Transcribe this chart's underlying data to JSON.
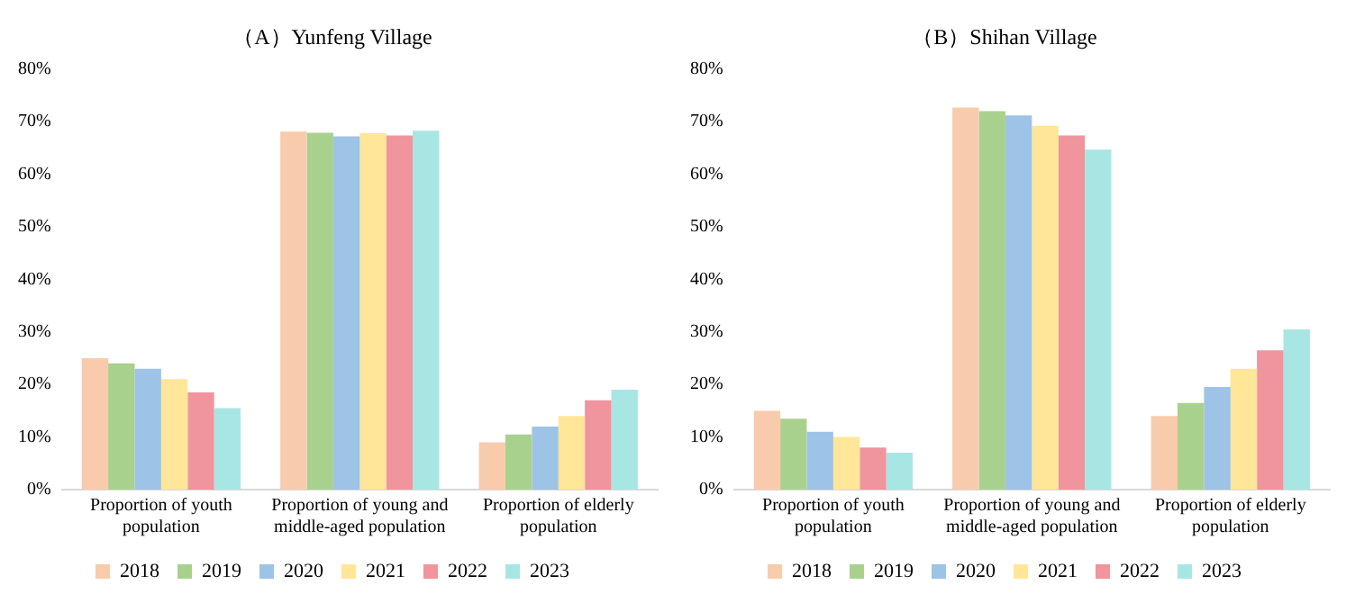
{
  "chart_data": [
    {
      "type": "bar",
      "title": "（A）Yunfeng Village",
      "categories": [
        "Proportion of youth population",
        "Proportion of young and middle-aged population",
        "Proportion of elderly population"
      ],
      "ylim": [
        0,
        80
      ],
      "yticks": [
        {
          "value": 0,
          "label": "0%"
        },
        {
          "value": 10,
          "label": "10%"
        },
        {
          "value": 20,
          "label": "20%"
        },
        {
          "value": 30,
          "label": "30%"
        },
        {
          "value": 40,
          "label": "40%"
        },
        {
          "value": 50,
          "label": "50%"
        },
        {
          "value": 60,
          "label": "60%"
        },
        {
          "value": 70,
          "label": "70%"
        },
        {
          "value": 80,
          "label": "80%"
        }
      ],
      "grid": false,
      "legend": "bottom",
      "series": [
        {
          "name": "2018",
          "color": "#f8cbad",
          "values": [
            25,
            68.1,
            9
          ]
        },
        {
          "name": "2019",
          "color": "#a9d18e",
          "values": [
            24,
            67.9,
            10.5
          ]
        },
        {
          "name": "2020",
          "color": "#9dc3e6",
          "values": [
            23,
            67.2,
            12
          ]
        },
        {
          "name": "2021",
          "color": "#ffe699",
          "values": [
            21,
            67.8,
            14
          ]
        },
        {
          "name": "2022",
          "color": "#f0949e",
          "values": [
            18.5,
            67.4,
            17
          ]
        },
        {
          "name": "2023",
          "color": "#a8e6e4",
          "values": [
            15.5,
            68.3,
            19
          ]
        }
      ]
    },
    {
      "type": "bar",
      "title": "（B）Shihan Village",
      "categories": [
        "Proportion of youth population",
        "Proportion of young and middle-aged population",
        "Proportion of elderly population"
      ],
      "ylim": [
        0,
        80
      ],
      "yticks": [
        {
          "value": 0,
          "label": "0%"
        },
        {
          "value": 10,
          "label": "10%"
        },
        {
          "value": 20,
          "label": "20%"
        },
        {
          "value": 30,
          "label": "30%"
        },
        {
          "value": 40,
          "label": "40%"
        },
        {
          "value": 50,
          "label": "50%"
        },
        {
          "value": 60,
          "label": "60%"
        },
        {
          "value": 70,
          "label": "70%"
        },
        {
          "value": 80,
          "label": "80%"
        }
      ],
      "grid": false,
      "legend": "bottom",
      "series": [
        {
          "name": "2018",
          "color": "#f8cbad",
          "values": [
            15,
            72.7,
            14
          ]
        },
        {
          "name": "2019",
          "color": "#a9d18e",
          "values": [
            13.5,
            72,
            16.5
          ]
        },
        {
          "name": "2020",
          "color": "#9dc3e6",
          "values": [
            11,
            71.2,
            19.5
          ]
        },
        {
          "name": "2021",
          "color": "#ffe699",
          "values": [
            10,
            69.2,
            23
          ]
        },
        {
          "name": "2022",
          "color": "#f0949e",
          "values": [
            8,
            67.4,
            26.5
          ]
        },
        {
          "name": "2023",
          "color": "#a8e6e4",
          "values": [
            7,
            64.7,
            30.5
          ]
        }
      ]
    }
  ]
}
